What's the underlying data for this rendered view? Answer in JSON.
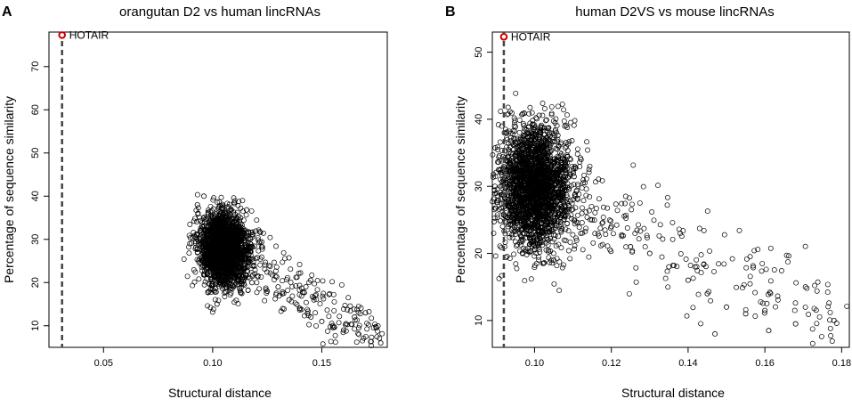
{
  "chart_data": [
    {
      "type": "scatter",
      "panel_label": "A",
      "title": "orangutan D2 vs human lincRNAs",
      "xlabel": "Structural distance",
      "ylabel": "Percentage of sequence similarity",
      "xlim": [
        0.025,
        0.18
      ],
      "ylim": [
        5,
        78
      ],
      "x_ticks": [
        0.05,
        0.1,
        0.15
      ],
      "x_tick_labels": [
        "0.05",
        "0.10",
        "0.15"
      ],
      "y_ticks": [
        10,
        20,
        30,
        40,
        50,
        60,
        70
      ],
      "y_tick_labels": [
        "10",
        "20",
        "30",
        "40",
        "50",
        "60",
        "70"
      ],
      "reference_line": {
        "x": 0.031,
        "style": "dashed"
      },
      "highlight": {
        "label": "HOTAIR",
        "x": 0.031,
        "y": 77.3,
        "color": "#cc0000"
      },
      "cloud": {
        "center_x": 0.105,
        "center_y": 28,
        "sd_x": 0.005,
        "sd_y": 4.2,
        "n": 2600,
        "tail_to": [
          0.177,
          6
        ]
      },
      "points": [
        [
          0.105,
          28.0
        ],
        [
          0.1,
          35.0
        ],
        [
          0.11,
          22.0
        ],
        [
          0.097,
          30.0
        ],
        [
          0.115,
          25.0
        ],
        [
          0.093,
          38.0
        ],
        [
          0.118,
          20.0
        ],
        [
          0.096,
          40.0
        ],
        [
          0.102,
          15.0
        ],
        [
          0.125,
          18.0
        ],
        [
          0.13,
          19.0
        ],
        [
          0.135,
          16.0
        ],
        [
          0.14,
          14.0
        ],
        [
          0.145,
          12.0
        ],
        [
          0.15,
          11.0
        ],
        [
          0.155,
          10.0
        ],
        [
          0.16,
          9.0
        ],
        [
          0.165,
          12.0
        ],
        [
          0.17,
          13.0
        ],
        [
          0.175,
          9.5
        ],
        [
          0.177,
          6.0
        ]
      ]
    },
    {
      "type": "scatter",
      "panel_label": "B",
      "title": "human D2VS vs mouse lincRNAs",
      "xlabel": "Structural distance",
      "ylabel": "Percentage of sequence similarity",
      "xlim": [
        0.089,
        0.182
      ],
      "ylim": [
        6,
        53
      ],
      "x_ticks": [
        0.1,
        0.12,
        0.14,
        0.16,
        0.18
      ],
      "x_tick_labels": [
        "0.10",
        "0.12",
        "0.14",
        "0.16",
        "0.18"
      ],
      "y_ticks": [
        10,
        20,
        30,
        40,
        50
      ],
      "y_tick_labels": [
        "10",
        "20",
        "30",
        "40",
        "50"
      ],
      "reference_line": {
        "x": 0.092,
        "style": "dashed"
      },
      "highlight": {
        "label": "HOTAIR",
        "x": 0.092,
        "y": 52.3,
        "color": "#cc0000"
      },
      "cloud": {
        "center_x": 0.1,
        "center_y": 30,
        "sd_x": 0.0045,
        "sd_y": 4.5,
        "n": 2600,
        "tail_to": [
          0.178,
          10
        ]
      },
      "points": [
        [
          0.1,
          30.0
        ],
        [
          0.098,
          38.0
        ],
        [
          0.102,
          36.0
        ],
        [
          0.097,
          22.0
        ],
        [
          0.105,
          19.0
        ],
        [
          0.11,
          28.0
        ],
        [
          0.115,
          25.0
        ],
        [
          0.12,
          24.0
        ],
        [
          0.125,
          21.0
        ],
        [
          0.13,
          20.0
        ],
        [
          0.135,
          18.0
        ],
        [
          0.14,
          16.0
        ],
        [
          0.145,
          14.0
        ],
        [
          0.147,
          8.0
        ],
        [
          0.15,
          12.0
        ],
        [
          0.155,
          11.0
        ],
        [
          0.16,
          11.5
        ],
        [
          0.161,
          8.5
        ],
        [
          0.168,
          9.5
        ],
        [
          0.178,
          10.0
        ]
      ]
    }
  ]
}
